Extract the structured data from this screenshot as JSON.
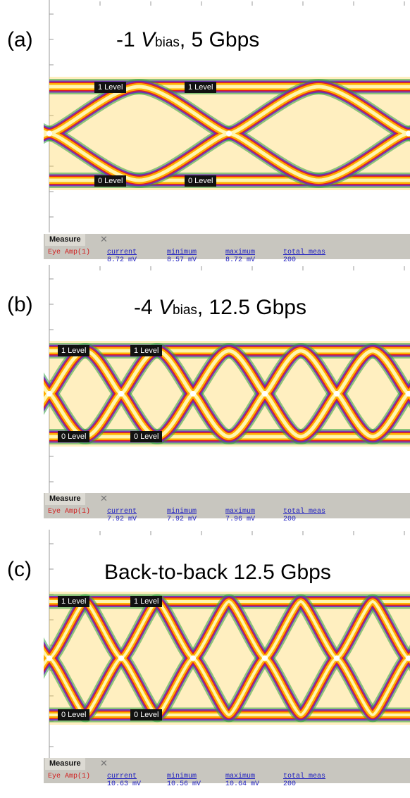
{
  "panels": [
    {
      "label": "(a)",
      "title_prefix": "-1 ",
      "title_var": "V",
      "title_sub": "bias",
      "title_suffix": ",  5 Gbps",
      "bit_rate": "5 Gbps",
      "eyes": 2,
      "level_1_label": "1 Level",
      "level_0_label": "0 Level",
      "measure": {
        "tab": "Measure",
        "row_label": "Eye Amp(",
        "row_index": "1",
        "row_close": ")",
        "headers": [
          "current",
          "minimum",
          "maximum",
          "total meas"
        ],
        "values": [
          "8.72 mV",
          "8.57 mV",
          "8.72 mV",
          "200"
        ]
      }
    },
    {
      "label": "(b)",
      "title_prefix": "-4 ",
      "title_var": "V",
      "title_sub": "bias",
      "title_suffix": ",  12.5 Gbps",
      "bit_rate": "12.5 Gbps",
      "eyes": 5,
      "level_1_label": "1 Level",
      "level_0_label": "0 Level",
      "measure": {
        "tab": "Measure",
        "row_label": "Eye Amp(",
        "row_index": "1",
        "row_close": ")",
        "headers": [
          "current",
          "minimum",
          "maximum",
          "total meas"
        ],
        "values": [
          "7.92 mV",
          "7.92 mV",
          "7.96 mV",
          "200"
        ]
      }
    },
    {
      "label": "(c)",
      "title_prefix": "Back-to-back  12.5 Gbps",
      "title_var": "",
      "title_sub": "",
      "title_suffix": "",
      "bit_rate": "12.5 Gbps",
      "eyes": 5,
      "level_1_label": "1 Level",
      "level_0_label": "0 Level",
      "measure": {
        "tab": "Measure",
        "row_label": "Eye Amp(",
        "row_index": "1",
        "row_close": ")",
        "headers": [
          "current",
          "minimum",
          "maximum",
          "total meas"
        ],
        "values": [
          "10.63 mV",
          "10.56 mV",
          "10.64 mV",
          "200"
        ]
      }
    }
  ],
  "colors": {
    "trace_core": "#fff6b0",
    "trace_mid": "#ffb000",
    "trace_edge": "#e02020",
    "trace_outer": "#7020c0",
    "noise": "#30a040",
    "measure_bg": "#c8c6bf"
  }
}
